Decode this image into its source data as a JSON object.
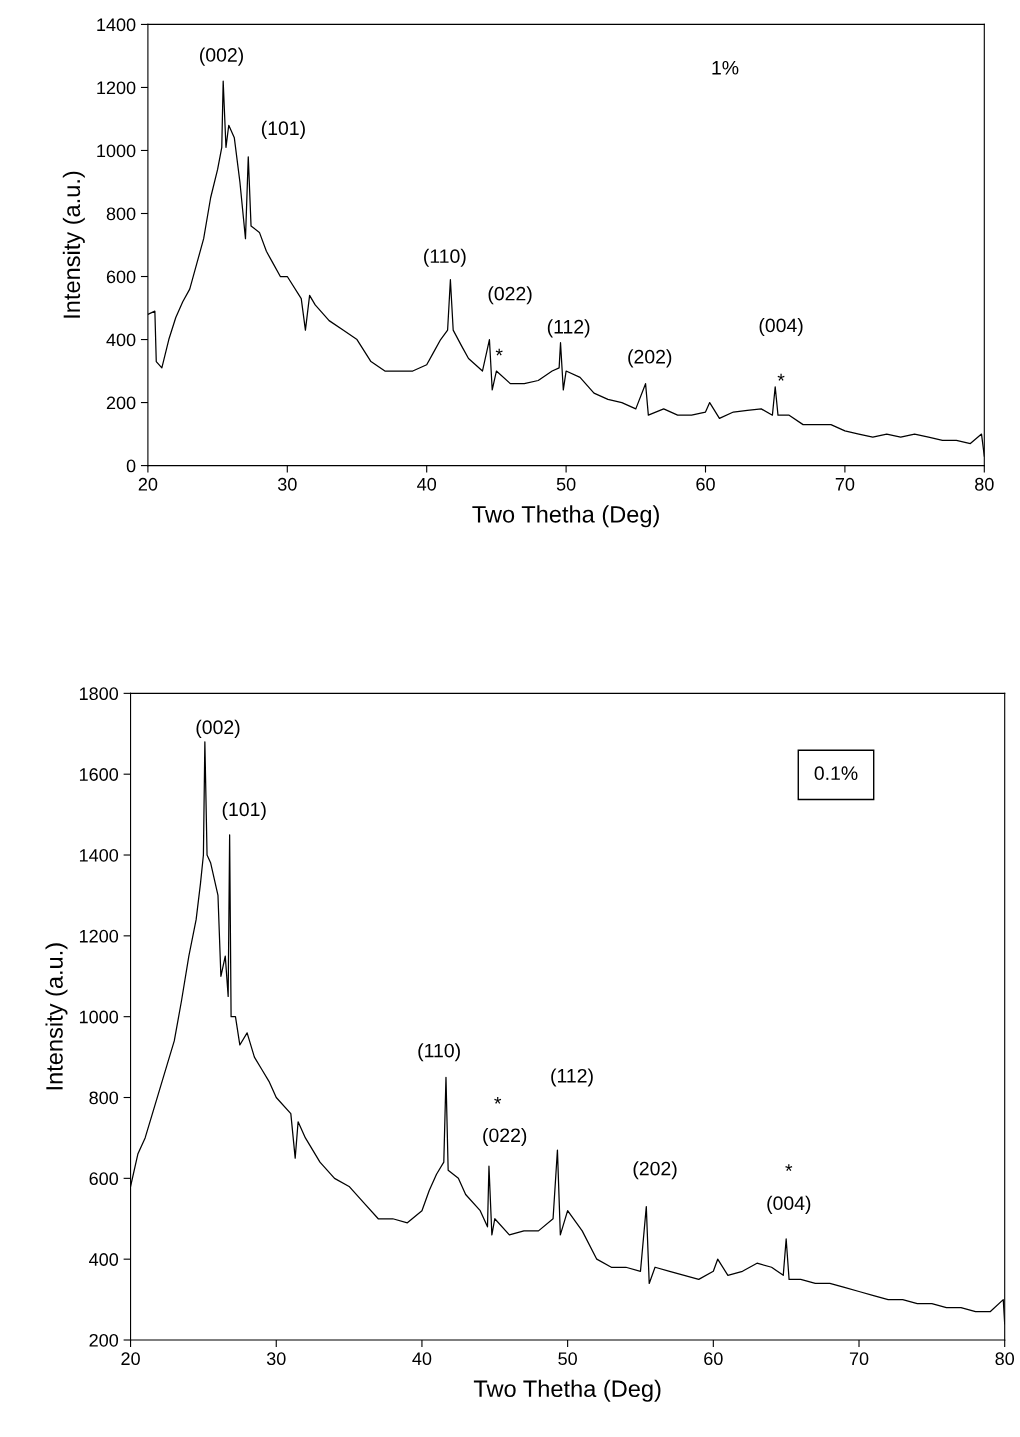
{
  "chart_data": [
    {
      "type": "line",
      "xlabel": "Two Thetha (Deg)",
      "ylabel": "Intensity (a.u.)",
      "xlim": [
        20,
        80
      ],
      "ylim": [
        0,
        1400
      ],
      "xticks": [
        20,
        30,
        40,
        50,
        60,
        70,
        80
      ],
      "yticks": [
        0,
        200,
        400,
        600,
        800,
        1000,
        1200,
        1400
      ],
      "grid": false,
      "legend": false,
      "marker": "none",
      "line_style": "solid",
      "x": [
        20.0,
        20.5,
        20.6,
        21.0,
        21.5,
        22.0,
        22.5,
        23.0,
        23.5,
        24.0,
        24.5,
        25.0,
        25.3,
        25.4,
        25.6,
        25.8,
        26.2,
        26.6,
        27.0,
        27.2,
        27.4,
        28.0,
        28.5,
        29.0,
        29.5,
        30.0,
        31.0,
        31.3,
        31.6,
        32.0,
        33.0,
        34.0,
        35.0,
        36.0,
        37.0,
        38.0,
        39.0,
        40.0,
        40.5,
        41.0,
        41.5,
        41.7,
        41.9,
        42.5,
        43.0,
        44.0,
        44.5,
        44.7,
        45.0,
        46.0,
        47.0,
        48.0,
        49.0,
        49.5,
        49.6,
        49.8,
        50.0,
        51.0,
        52.0,
        53.0,
        54.0,
        55.0,
        55.7,
        55.9,
        57.0,
        58.0,
        59.0,
        60.0,
        60.3,
        61.0,
        62.0,
        63.0,
        64.0,
        64.8,
        65.0,
        65.2,
        66.0,
        67.0,
        68.0,
        69.0,
        70.0,
        71.0,
        72.0,
        73.0,
        74.0,
        75.0,
        76.0,
        77.0,
        78.0,
        79.0,
        79.8,
        80.0
      ],
      "series": [
        {
          "color": "#000000",
          "values": [
            480,
            490,
            330,
            310,
            400,
            470,
            520,
            560,
            640,
            720,
            850,
            940,
            1010,
            1220,
            1010,
            1080,
            1040,
            900,
            720,
            980,
            760,
            740,
            680,
            640,
            600,
            600,
            530,
            430,
            540,
            510,
            460,
            430,
            400,
            330,
            300,
            300,
            300,
            320,
            360,
            400,
            430,
            590,
            430,
            380,
            340,
            300,
            400,
            240,
            300,
            260,
            260,
            270,
            300,
            310,
            390,
            240,
            300,
            280,
            230,
            210,
            200,
            180,
            260,
            160,
            180,
            160,
            160,
            170,
            200,
            150,
            170,
            175,
            180,
            160,
            250,
            160,
            160,
            130,
            130,
            130,
            110,
            100,
            90,
            100,
            90,
            100,
            90,
            80,
            80,
            70,
            100,
            30
          ]
        }
      ],
      "annotations": [
        "(002)",
        "(101)",
        "(110)",
        "(022)",
        "*",
        "(112)",
        "(202)",
        "(004)",
        "*",
        "1%"
      ]
    },
    {
      "type": "line",
      "xlabel": "Two Thetha (Deg)",
      "ylabel": "Intensity (a.u.)",
      "xlim": [
        20,
        80
      ],
      "ylim": [
        200,
        1800
      ],
      "xticks": [
        20,
        30,
        40,
        50,
        60,
        70,
        80
      ],
      "yticks": [
        200,
        400,
        600,
        800,
        1000,
        1200,
        1400,
        1600,
        1800
      ],
      "grid": false,
      "legend": false,
      "marker": "none",
      "line_style": "solid",
      "x": [
        20.0,
        20.5,
        21.0,
        21.5,
        22.0,
        22.5,
        23.0,
        23.5,
        24.0,
        24.5,
        24.8,
        25.0,
        25.1,
        25.25,
        25.5,
        26.0,
        26.2,
        26.5,
        26.7,
        26.8,
        26.9,
        27.2,
        27.5,
        28.0,
        28.5,
        29.0,
        29.5,
        30.0,
        31.0,
        31.3,
        31.5,
        32.0,
        33.0,
        34.0,
        35.0,
        36.0,
        37.0,
        38.0,
        39.0,
        40.0,
        40.5,
        41.0,
        41.5,
        41.65,
        41.8,
        42.5,
        43.0,
        44.0,
        44.5,
        44.6,
        44.8,
        45.0,
        46.0,
        47.0,
        48.0,
        49.0,
        49.3,
        49.5,
        50.0,
        51.0,
        52.0,
        53.0,
        54.0,
        55.0,
        55.4,
        55.6,
        56.0,
        57.0,
        58.0,
        59.0,
        60.0,
        60.3,
        61.0,
        62.0,
        63.0,
        64.0,
        64.8,
        65.0,
        65.2,
        66.0,
        67.0,
        68.0,
        69.0,
        70.0,
        71.0,
        72.0,
        73.0,
        74.0,
        75.0,
        76.0,
        77.0,
        78.0,
        79.0,
        79.9,
        80.0
      ],
      "series": [
        {
          "color": "#000000",
          "values": [
            580,
            660,
            700,
            760,
            820,
            880,
            940,
            1040,
            1150,
            1240,
            1330,
            1400,
            1680,
            1400,
            1380,
            1300,
            1100,
            1150,
            1050,
            1450,
            1000,
            1000,
            930,
            960,
            900,
            870,
            840,
            800,
            760,
            650,
            740,
            700,
            640,
            600,
            580,
            540,
            500,
            500,
            490,
            520,
            570,
            610,
            640,
            850,
            620,
            600,
            560,
            520,
            480,
            630,
            460,
            500,
            460,
            470,
            470,
            500,
            670,
            460,
            520,
            470,
            400,
            380,
            380,
            370,
            530,
            340,
            380,
            370,
            360,
            350,
            370,
            400,
            360,
            370,
            390,
            380,
            360,
            450,
            350,
            350,
            340,
            340,
            330,
            320,
            310,
            300,
            300,
            290,
            290,
            280,
            280,
            270,
            270,
            300,
            240
          ]
        }
      ],
      "annotations": [
        "(002)",
        "(101)",
        "(110)",
        "*",
        "(022)",
        "(112)",
        "(202)",
        "*",
        "(004)",
        "0.1%"
      ]
    }
  ]
}
